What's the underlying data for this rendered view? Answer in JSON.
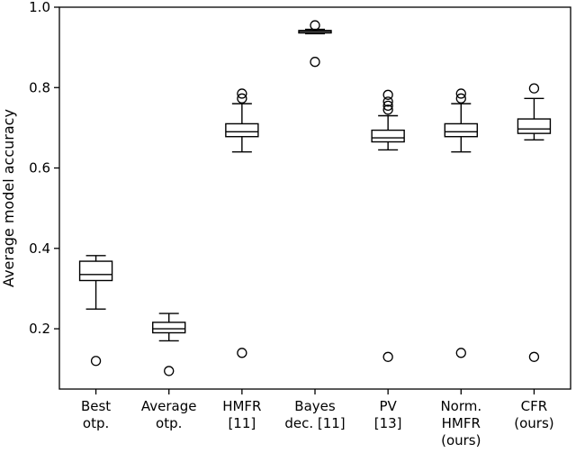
{
  "chart_data": {
    "type": "box",
    "title": "",
    "xlabel": "",
    "ylabel": "Average model accuracy",
    "ylim": [
      0.05,
      1.0
    ],
    "yticks": [
      0.2,
      0.4,
      0.6,
      0.8,
      1.0
    ],
    "ytick_labels": [
      "0.2",
      "0.4",
      "0.6",
      "0.8",
      "1.0"
    ],
    "grid": false,
    "categories": [
      {
        "lines": [
          "Best",
          "otp."
        ]
      },
      {
        "lines": [
          "Average",
          "otp."
        ]
      },
      {
        "lines": [
          "HMFR",
          "[11]"
        ]
      },
      {
        "lines": [
          "Bayes",
          "dec. [11]"
        ]
      },
      {
        "lines": [
          "PV",
          "[13]"
        ]
      },
      {
        "lines": [
          "Norm.",
          "HMFR",
          "(ours)"
        ]
      },
      {
        "lines": [
          "CFR",
          "(ours)"
        ]
      }
    ],
    "boxes": [
      {
        "whisker_low": 0.249,
        "q1": 0.32,
        "median": 0.335,
        "q3": 0.368,
        "whisker_high": 0.382,
        "outliers": [
          0.12
        ]
      },
      {
        "whisker_low": 0.17,
        "q1": 0.19,
        "median": 0.2,
        "q3": 0.216,
        "whisker_high": 0.238,
        "outliers": [
          0.095
        ]
      },
      {
        "whisker_low": 0.64,
        "q1": 0.678,
        "median": 0.69,
        "q3": 0.71,
        "whisker_high": 0.76,
        "outliers": [
          0.773,
          0.785,
          0.14
        ]
      },
      {
        "whisker_low": 0.934,
        "q1": 0.936,
        "median": 0.94,
        "q3": 0.942,
        "whisker_high": 0.945,
        "outliers": [
          0.955,
          0.864
        ]
      },
      {
        "whisker_low": 0.645,
        "q1": 0.665,
        "median": 0.675,
        "q3": 0.694,
        "whisker_high": 0.73,
        "outliers": [
          0.745,
          0.755,
          0.765,
          0.782,
          0.13
        ]
      },
      {
        "whisker_low": 0.64,
        "q1": 0.678,
        "median": 0.69,
        "q3": 0.71,
        "whisker_high": 0.76,
        "outliers": [
          0.773,
          0.785,
          0.14
        ]
      },
      {
        "whisker_low": 0.67,
        "q1": 0.686,
        "median": 0.697,
        "q3": 0.722,
        "whisker_high": 0.773,
        "outliers": [
          0.798,
          0.13
        ]
      }
    ]
  }
}
